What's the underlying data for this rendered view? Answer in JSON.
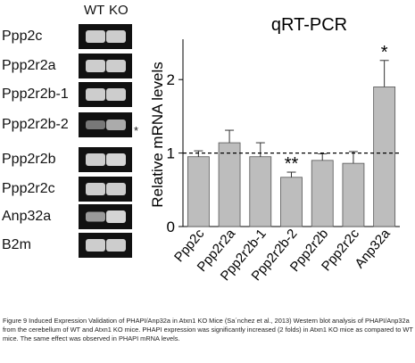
{
  "gel": {
    "header": {
      "wt": "WT",
      "ko": "KO"
    },
    "rows": [
      {
        "label": "Ppp2c",
        "wt": 0.85,
        "ko": 0.85
      },
      {
        "label": "Ppp2r2a",
        "wt": 0.85,
        "ko": 0.85
      },
      {
        "label": "Ppp2r2b-1",
        "wt": 0.85,
        "ko": 0.85
      },
      {
        "label": "Ppp2r2b-2",
        "wt": 0.35,
        "ko": 0.65
      },
      {
        "label": "Ppp2r2b",
        "wt": 0.85,
        "ko": 0.9
      },
      {
        "label": "Ppp2r2c",
        "wt": 0.85,
        "ko": 0.85
      },
      {
        "label": "Anp32a",
        "wt": 0.55,
        "ko": 0.9
      },
      {
        "label": "B2m",
        "wt": 0.85,
        "ko": 0.85
      }
    ],
    "mark": "*"
  },
  "chart_data": {
    "type": "bar",
    "title": "qRT-PCR",
    "xlabel": "",
    "ylabel": "Relative mRNA levels",
    "categories": [
      "Ppp2c",
      "Ppp2r2a",
      "Ppp2r2b-1",
      "Ppp2r2b-2",
      "Ppp2r2b",
      "Ppp2r2c",
      "Anp32a"
    ],
    "values": [
      0.95,
      1.14,
      0.95,
      0.67,
      0.9,
      0.86,
      1.9
    ],
    "errors": [
      0.08,
      0.17,
      0.19,
      0.07,
      0.09,
      0.16,
      0.36
    ],
    "annotations": [
      "",
      "",
      "",
      "**",
      "",
      "",
      "*"
    ],
    "ylim": [
      0,
      2.5
    ],
    "yticks": [
      0,
      1,
      2
    ],
    "reference_line": 1,
    "bar_color": "#bdbdbd"
  },
  "caption": "Figure 9 Induced Expression Validation of PHAPI/Anp32a in Atxn1 KO Mice (Sa´nchez et al., 2013) Western blot analysis of PHAPI/Anp32a from the cerebellum of WT and Atxn1 KO mice. PHAPI expression was significantly increased (2 folds) in Atxn1 KO mice as compared to WT mice. The same effect was observed in PHAPI mRNA levels."
}
